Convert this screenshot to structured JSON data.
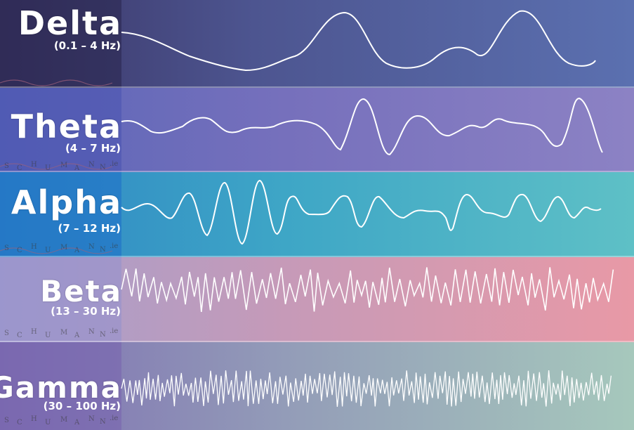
{
  "bands": [
    {
      "id": "delta",
      "name": "Delta",
      "range": "(0.1 – 4 Hz)",
      "colors": {
        "left": "#3a3566",
        "right": "#5b70b0",
        "panel": "#2f2b55"
      }
    },
    {
      "id": "theta",
      "name": "Theta",
      "range": "(4 – 7 Hz)",
      "colors": {
        "left": "#5b66b8",
        "right": "#8c82c4",
        "panel": "#4d58b0"
      }
    },
    {
      "id": "alpha",
      "name": "Alpha",
      "range": "(7 – 12 Hz)",
      "colors": {
        "left": "#2f86c4",
        "right": "#5ec0c6",
        "panel": "#2279c8"
      }
    },
    {
      "id": "beta",
      "name": "Beta",
      "range": "(13 – 30 Hz)",
      "colors": {
        "left": "#a49fcc",
        "right": "#e899a6",
        "panel": "#9f98cc"
      }
    },
    {
      "id": "gamma",
      "name": "Gamma",
      "range": "(30 – 100 Hz)",
      "colors": {
        "left": "#7e6fb2",
        "right": "#a6c8bc",
        "panel": "#7a68b0"
      }
    }
  ],
  "watermark": [
    "S",
    "C",
    "H",
    "U",
    "M",
    "A",
    "N",
    "N",
    ".ie"
  ]
}
